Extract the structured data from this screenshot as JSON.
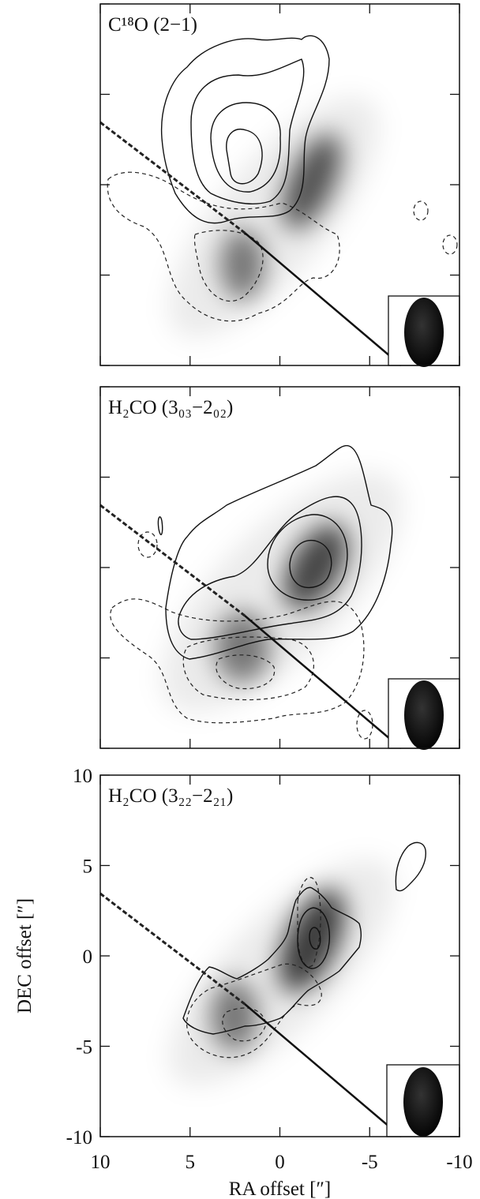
{
  "chart_data": [
    {
      "type": "contour",
      "title": "C¹⁸O (2−1)",
      "xlim": [
        10,
        -10
      ],
      "ylim": [
        -10,
        10
      ],
      "xticks": [
        10,
        5,
        0,
        -5,
        -10
      ],
      "yticks": [
        -10,
        -5,
        0,
        5,
        10
      ],
      "tick_labels": false
    },
    {
      "type": "contour",
      "title": "H₂CO (3₀₃−2₀₂)",
      "xlim": [
        10,
        -10
      ],
      "ylim": [
        -10,
        10
      ],
      "xticks": [
        10,
        5,
        0,
        -5,
        -10
      ],
      "yticks": [
        -10,
        -5,
        0,
        5,
        10
      ],
      "tick_labels": false
    },
    {
      "type": "contour",
      "title": "H₂CO (3₂₂−2₂₁)",
      "xlim": [
        10,
        -10
      ],
      "ylim": [
        -10,
        10
      ],
      "xticks": [
        10,
        5,
        0,
        -5,
        -10
      ],
      "yticks": [
        -10,
        -5,
        0,
        5,
        10
      ],
      "tick_labels": true,
      "xlabel": "RA offset [″]",
      "ylabel": "DEC offset [″]"
    }
  ]
}
